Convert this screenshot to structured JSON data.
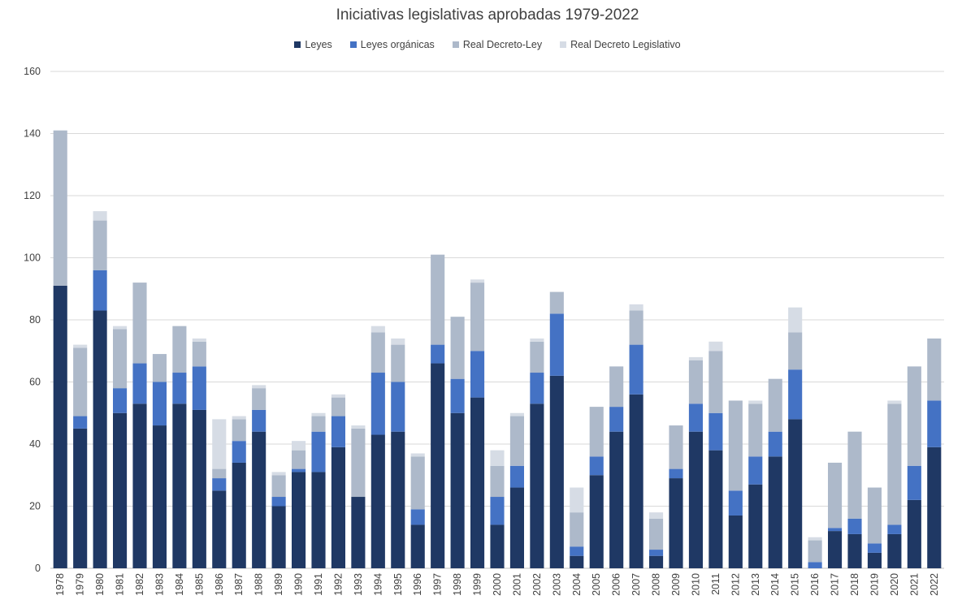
{
  "chart_data": {
    "type": "bar",
    "stacked": true,
    "title": "Iniciativas legislativas aprobadas 1979-2022",
    "xlabel": "",
    "ylabel": "",
    "ylim": [
      0,
      160
    ],
    "yticks": [
      0,
      20,
      40,
      60,
      80,
      100,
      120,
      140,
      160
    ],
    "grid": true,
    "legend_position": "top",
    "categories": [
      "1978",
      "1979",
      "1980",
      "1981",
      "1982",
      "1983",
      "1984",
      "1985",
      "1986",
      "1987",
      "1988",
      "1989",
      "1990",
      "1991",
      "1992",
      "1993",
      "1994",
      "1995",
      "1996",
      "1997",
      "1998",
      "1999",
      "2000",
      "2001",
      "2002",
      "2003",
      "2004",
      "2005",
      "2006",
      "2007",
      "2008",
      "2009",
      "2010",
      "2011",
      "2012",
      "2013",
      "2014",
      "2015",
      "2016",
      "2017",
      "2018",
      "2019",
      "2020",
      "2021",
      "2022"
    ],
    "series": [
      {
        "name": "Leyes",
        "color": "#1f3864",
        "values": [
          91,
          45,
          83,
          50,
          53,
          46,
          53,
          51,
          25,
          34,
          44,
          20,
          31,
          31,
          39,
          23,
          43,
          44,
          14,
          66,
          50,
          55,
          14,
          26,
          53,
          62,
          4,
          30,
          44,
          56,
          4,
          29,
          44,
          38,
          17,
          27,
          36,
          48,
          0,
          12,
          11,
          5,
          11,
          22,
          39
        ]
      },
      {
        "name": "Leyes orgánicas",
        "color": "#4472c4",
        "values": [
          0,
          4,
          13,
          8,
          13,
          14,
          10,
          14,
          4,
          7,
          7,
          3,
          1,
          13,
          10,
          0,
          20,
          16,
          5,
          6,
          11,
          15,
          9,
          7,
          10,
          20,
          3,
          6,
          8,
          16,
          2,
          3,
          9,
          12,
          8,
          9,
          8,
          16,
          2,
          1,
          5,
          3,
          3,
          11,
          15
        ]
      },
      {
        "name": "Real Decreto-Ley",
        "color": "#adb9ca",
        "values": [
          50,
          22,
          16,
          19,
          26,
          9,
          15,
          8,
          3,
          7,
          7,
          7,
          6,
          5,
          6,
          22,
          13,
          12,
          17,
          29,
          20,
          22,
          10,
          16,
          10,
          7,
          11,
          16,
          13,
          11,
          10,
          14,
          14,
          20,
          29,
          17,
          17,
          12,
          7,
          21,
          28,
          18,
          39,
          32,
          20
        ]
      },
      {
        "name": "Real Decreto Legislativo",
        "color": "#d6dce5",
        "values": [
          0,
          1,
          3,
          1,
          0,
          0,
          0,
          1,
          16,
          1,
          1,
          1,
          3,
          1,
          1,
          1,
          2,
          2,
          1,
          0,
          0,
          1,
          5,
          1,
          1,
          0,
          8,
          0,
          0,
          2,
          2,
          0,
          1,
          3,
          0,
          1,
          0,
          8,
          1,
          0,
          0,
          0,
          1,
          0,
          0
        ]
      }
    ]
  }
}
